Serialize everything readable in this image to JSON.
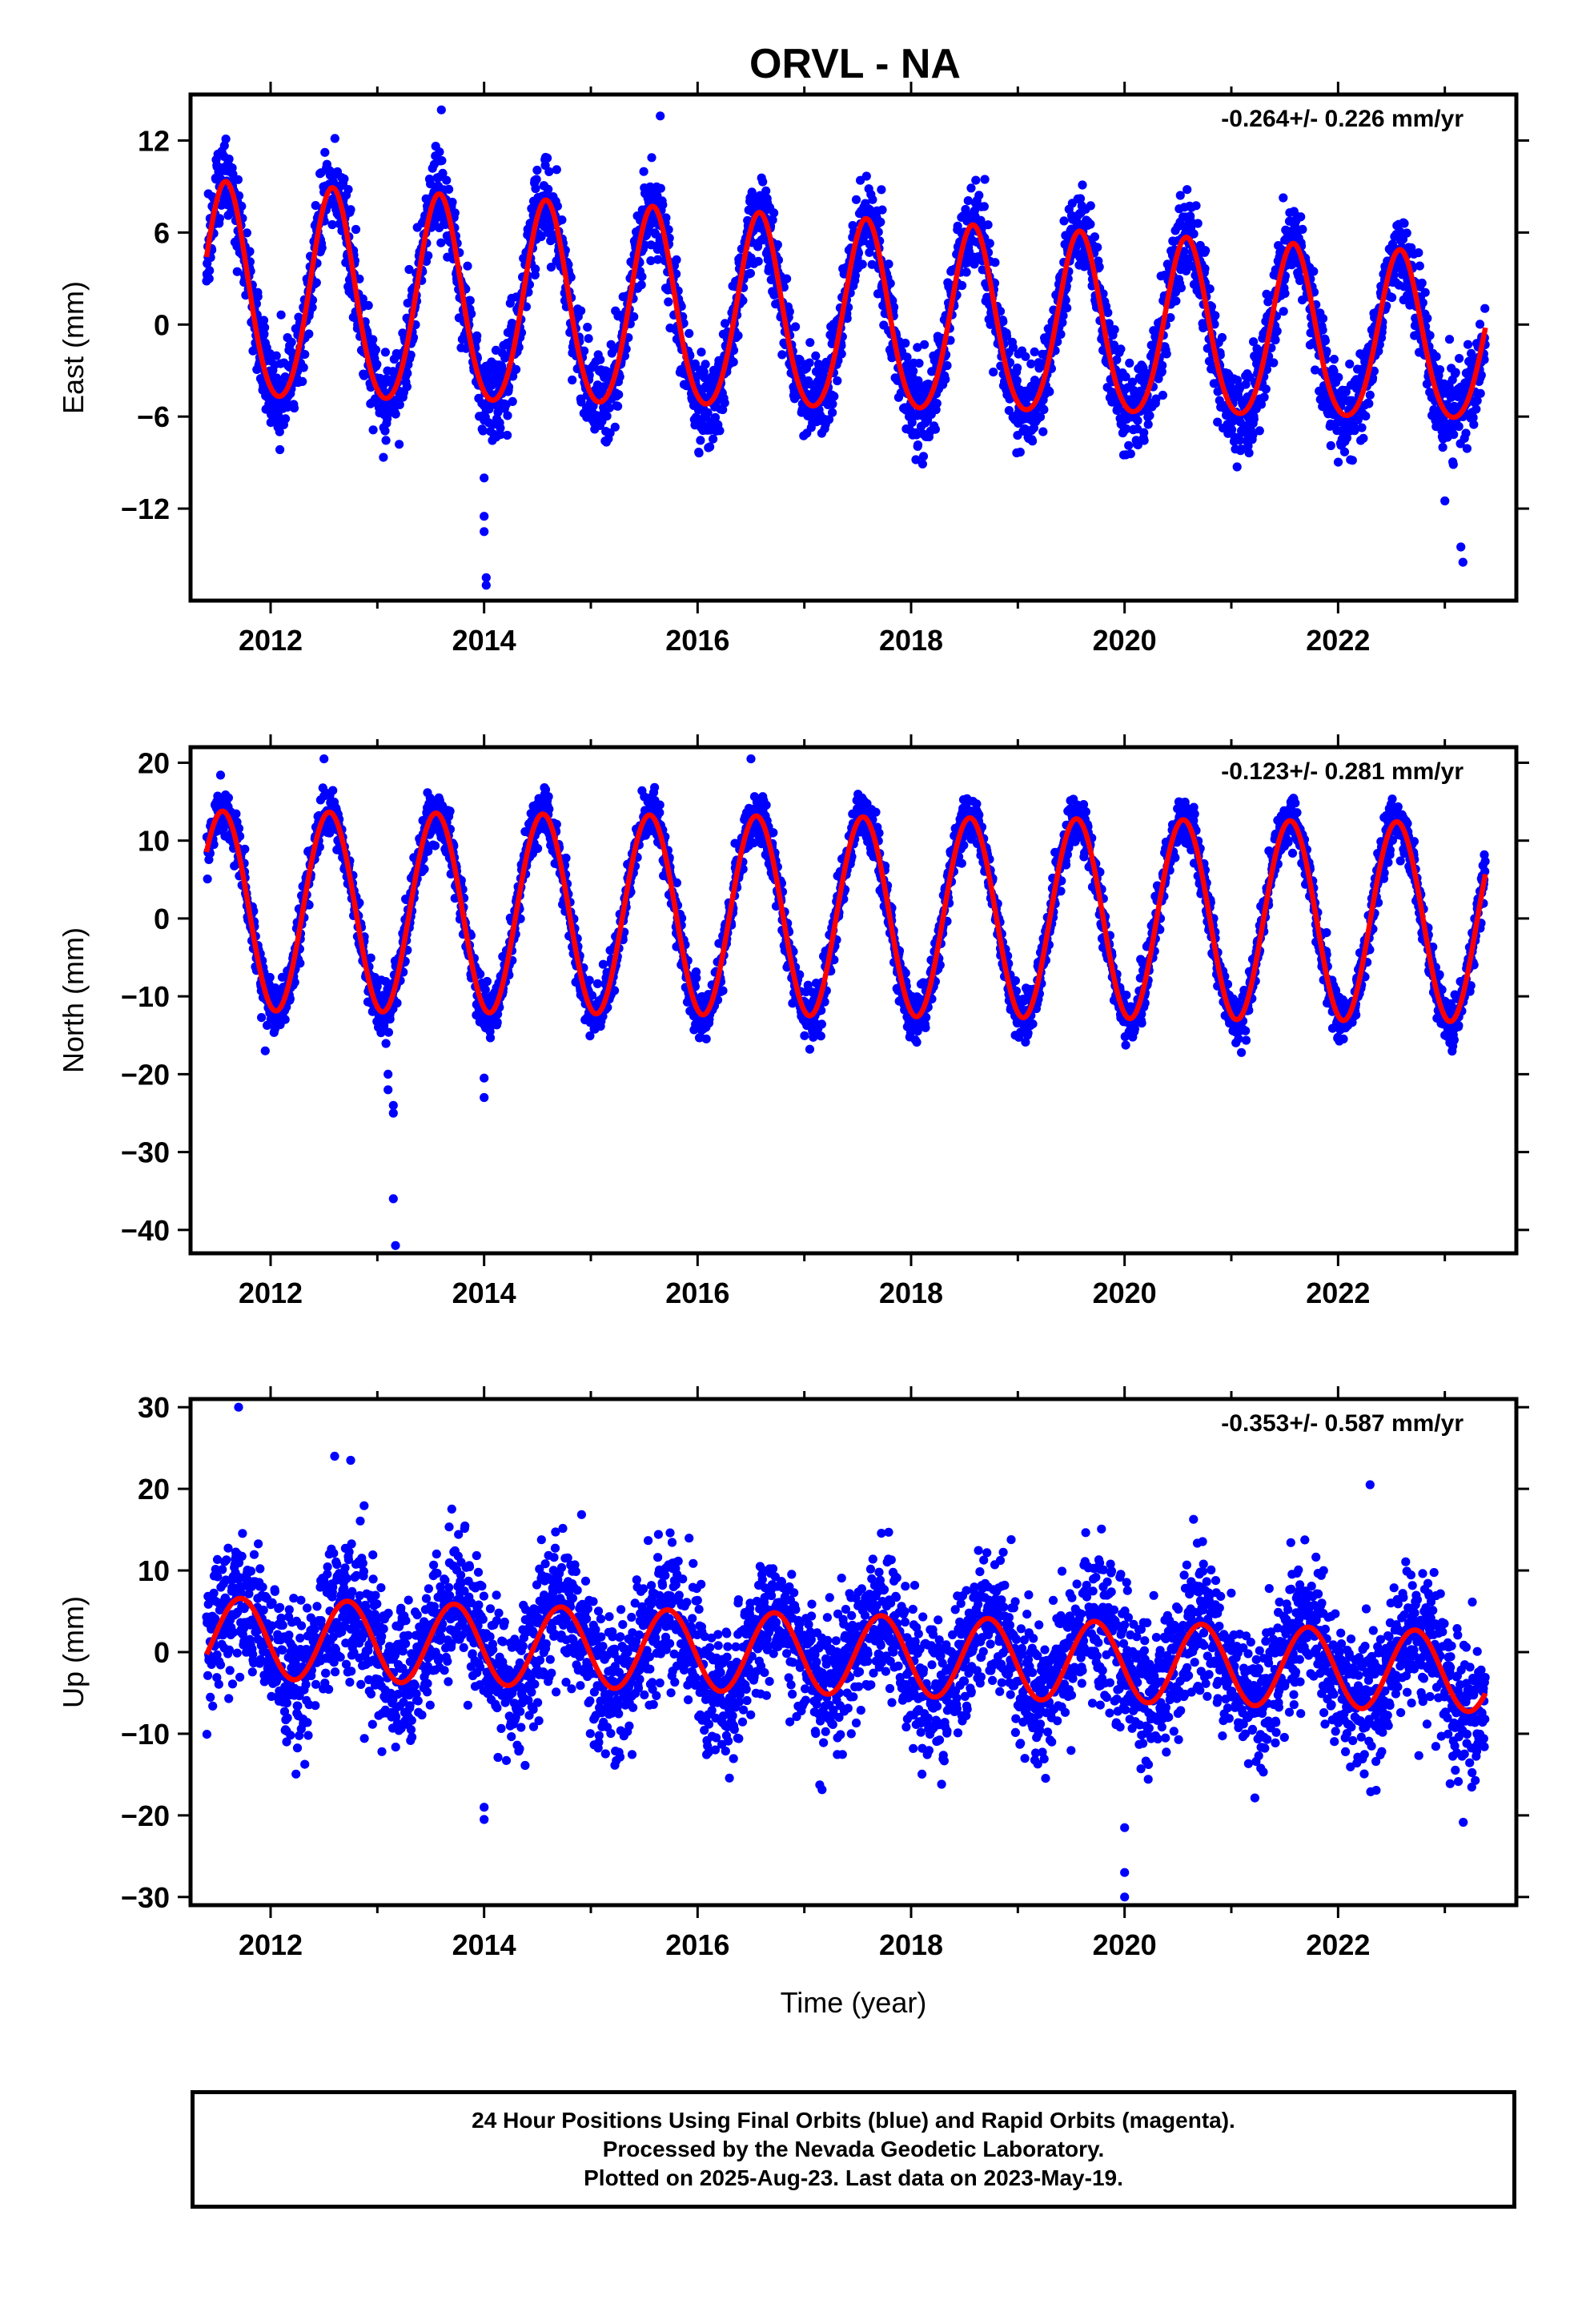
{
  "title": "ORVL - NA",
  "footer": {
    "lines": [
      "24 Hour Positions Using Final Orbits (blue) and Rapid Orbits (magenta).",
      "Processed by the Nevada Geodetic Laboratory.",
      "Plotted on 2025-Aug-23. Last data on 2023-May-19."
    ]
  },
  "colors": {
    "observations": "#0000ff",
    "model": "#ff0000",
    "axes": "#000000"
  },
  "chart_data": [
    {
      "type": "scatter",
      "component": "east",
      "ylabel": "East (mm)",
      "xlabel": "",
      "rate_label": "-0.264+/- 0.226 mm/yr",
      "xlim": [
        2011.25,
        2023.67
      ],
      "ylim": [
        -18,
        15
      ],
      "xticks": [
        2012,
        2014,
        2016,
        2018,
        2020,
        2022
      ],
      "yticks": [
        12,
        6,
        0,
        -6,
        -12
      ],
      "data_span": [
        2011.4,
        2023.38
      ],
      "model": {
        "offset": 1.8,
        "rate": -0.264,
        "annual_amplitude": 7.0,
        "annual_amplitude_decay": 0.02,
        "peak_phase_year": 0.58,
        "semiannual_amplitude": 0.6
      },
      "noise_sd": 1.4,
      "outliers": [
        [
          2014.0,
          -10.0
        ],
        [
          2014.0,
          -12.5
        ],
        [
          2014.0,
          -13.5
        ],
        [
          2014.02,
          -16.5
        ],
        [
          2014.02,
          -17.0
        ],
        [
          2023.15,
          -14.5
        ],
        [
          2023.17,
          -15.5
        ],
        [
          2013.6,
          14.0
        ],
        [
          2015.65,
          13.6
        ],
        [
          2023.0,
          -11.5
        ]
      ]
    },
    {
      "type": "scatter",
      "component": "north",
      "ylabel": "North (mm)",
      "xlabel": "",
      "rate_label": "-0.123+/- 0.281 mm/yr",
      "xlim": [
        2011.25,
        2023.67
      ],
      "ylim": [
        -43,
        22
      ],
      "xticks": [
        2012,
        2014,
        2016,
        2018,
        2020,
        2022
      ],
      "yticks": [
        20,
        10,
        0,
        -10,
        -20,
        -30,
        -40
      ],
      "data_span": [
        2011.4,
        2023.38
      ],
      "model": {
        "offset": 1.0,
        "rate": -0.123,
        "annual_amplitude": 12.8,
        "annual_amplitude_decay": 0.0,
        "peak_phase_year": 0.55,
        "semiannual_amplitude": 0.0
      },
      "noise_sd": 1.6,
      "outliers": [
        [
          2013.1,
          -20.0
        ],
        [
          2013.1,
          -22.0
        ],
        [
          2013.15,
          -24.0
        ],
        [
          2013.15,
          -25.0
        ],
        [
          2013.15,
          -36.0
        ],
        [
          2013.17,
          -42.0
        ],
        [
          2014.0,
          -20.5
        ],
        [
          2014.0,
          -23.0
        ],
        [
          2012.5,
          20.5
        ],
        [
          2016.5,
          20.5
        ],
        [
          2011.95,
          -17.0
        ]
      ]
    },
    {
      "type": "scatter",
      "component": "up",
      "ylabel": "Up (mm)",
      "xlabel": "Time (year)",
      "rate_label": "-0.353+/- 0.587 mm/yr",
      "xlim": [
        2011.25,
        2023.67
      ],
      "ylim": [
        -31,
        31
      ],
      "xticks": [
        2012,
        2014,
        2016,
        2018,
        2020,
        2022
      ],
      "yticks": [
        30,
        20,
        10,
        0,
        -10,
        -20,
        -30
      ],
      "data_span": [
        2011.4,
        2023.38
      ],
      "model": {
        "offset": 1.8,
        "rate": -0.353,
        "annual_amplitude": 4.9,
        "annual_amplitude_decay": 0.0,
        "peak_phase_year": 0.72,
        "semiannual_amplitude": 0.0
      },
      "noise_sd": 4.2,
      "outliers": [
        [
          2011.7,
          30.0
        ],
        [
          2012.6,
          24.0
        ],
        [
          2012.75,
          23.5
        ],
        [
          2022.3,
          20.5
        ],
        [
          2014.0,
          -19.0
        ],
        [
          2014.0,
          -20.5
        ],
        [
          2020.0,
          -27.0
        ],
        [
          2020.0,
          -30.0
        ],
        [
          2020.0,
          -21.5
        ],
        [
          2012.15,
          -11.0
        ]
      ]
    }
  ]
}
